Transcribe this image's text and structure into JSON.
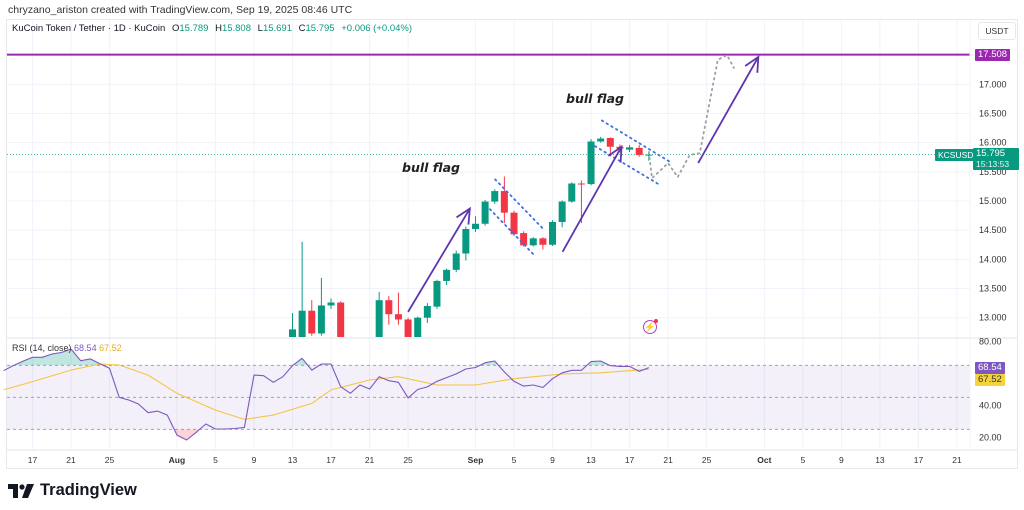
{
  "header": {
    "credit": "chryzano_ariston created with TradingView.com, Sep 19, 2025 08:46 UTC"
  },
  "legend": {
    "symbol": "KuCoin Token / Tether · 1D · KuCoin",
    "open_label": "O",
    "open": "15.789",
    "high_label": "H",
    "high": "15.808",
    "low_label": "L",
    "low": "15.691",
    "close_label": "C",
    "close": "15.795",
    "change": "+0.006 (+0.04%)"
  },
  "price_axis": {
    "currency": "USDT",
    "ticks": [
      "17.000",
      "16.500",
      "16.000",
      "15.500",
      "15.000",
      "14.500",
      "14.000",
      "13.500",
      "13.000"
    ],
    "level_label": "17.508",
    "symbol_badge": "KCSUSDT",
    "last_price": "15.795",
    "countdown": "15:13:53"
  },
  "rsi": {
    "legend": "RSI (14, close)",
    "value": "68.54",
    "ma_value": "67.52",
    "ticks": [
      "80.00",
      "40.00",
      "20.00"
    ],
    "bands": [
      70,
      50,
      30
    ],
    "start_date": "2025-07-14",
    "values": [
      66.6,
      69.8,
      72.5,
      75,
      75,
      77,
      78,
      80.2,
      72.9,
      74,
      71,
      68.1,
      50,
      48.3,
      45.8,
      40.4,
      41.4,
      38.9,
      26.4,
      23.3,
      28.1,
      33.3,
      30.2,
      30.2,
      30.5,
      31.2,
      63.9,
      63.5,
      59.4,
      62.9,
      69.8,
      74.4,
      67,
      70.8,
      70.8,
      56.6,
      52.5,
      57.7,
      55.2,
      62.9,
      60.4,
      59.4,
      49.6,
      54.9,
      56.5,
      60,
      62.3,
      64.6,
      67.7,
      68.6,
      71.6,
      72.7,
      65.8,
      60,
      57,
      57.7,
      56.1,
      61.6,
      65.3,
      66.9,
      66.9,
      72.3,
      72.7,
      69.8,
      69.3,
      69.3,
      66.2,
      68.54
    ],
    "ma": [
      [
        "2025-07-14",
        54.6
      ],
      [
        "2025-07-17",
        59.8
      ],
      [
        "2025-07-21",
        67
      ],
      [
        "2025-07-24",
        70.8
      ],
      [
        "2025-07-26",
        70.2
      ],
      [
        "2025-07-29",
        63.9
      ],
      [
        "2025-08-01",
        52.5
      ],
      [
        "2025-08-05",
        42
      ],
      [
        "2025-08-08",
        36.2
      ],
      [
        "2025-08-11",
        38.9
      ],
      [
        "2025-08-15",
        46.2
      ],
      [
        "2025-08-17",
        54.6
      ],
      [
        "2025-08-21",
        60.8
      ],
      [
        "2025-08-24",
        62.9
      ],
      [
        "2025-08-28",
        57.7
      ],
      [
        "2025-09-01",
        57.7
      ],
      [
        "2025-09-05",
        61.6
      ],
      [
        "2025-09-10",
        64.6
      ],
      [
        "2025-09-14",
        65.3
      ],
      [
        "2025-09-19",
        67.52
      ]
    ]
  },
  "time_axis": {
    "ticks": [
      [
        "2025-07-17",
        "17"
      ],
      [
        "2025-07-21",
        "21"
      ],
      [
        "2025-07-25",
        "25"
      ],
      [
        "2025-08-01",
        "Aug"
      ],
      [
        "2025-08-05",
        "5"
      ],
      [
        "2025-08-09",
        "9"
      ],
      [
        "2025-08-13",
        "13"
      ],
      [
        "2025-08-17",
        "17"
      ],
      [
        "2025-08-21",
        "21"
      ],
      [
        "2025-08-25",
        "25"
      ],
      [
        "2025-09-01",
        "Sep"
      ],
      [
        "2025-09-05",
        "5"
      ],
      [
        "2025-09-09",
        "9"
      ],
      [
        "2025-09-13",
        "13"
      ],
      [
        "2025-09-17",
        "17"
      ],
      [
        "2025-09-21",
        "21"
      ],
      [
        "2025-09-25",
        "25"
      ],
      [
        "2025-10-01",
        "Oct"
      ],
      [
        "2025-10-05",
        "5"
      ],
      [
        "2025-10-09",
        "9"
      ],
      [
        "2025-10-13",
        "13"
      ],
      [
        "2025-10-17",
        "17"
      ],
      [
        "2025-10-21",
        "21"
      ]
    ]
  },
  "candles": [
    {
      "d": "2025-08-13",
      "o": 12.6,
      "h": 13.08,
      "l": 12.45,
      "c": 12.8
    },
    {
      "d": "2025-08-14",
      "o": 12.55,
      "h": 14.3,
      "l": 12.45,
      "c": 13.12
    },
    {
      "d": "2025-08-15",
      "o": 13.12,
      "h": 13.3,
      "l": 12.69,
      "c": 12.73
    },
    {
      "d": "2025-08-16",
      "o": 12.73,
      "h": 13.68,
      "l": 12.69,
      "c": 13.21
    },
    {
      "d": "2025-08-17",
      "o": 13.21,
      "h": 13.33,
      "l": 13.15,
      "c": 13.26
    },
    {
      "d": "2025-08-18",
      "o": 13.26,
      "h": 13.28,
      "l": 12.4,
      "c": 12.5
    },
    {
      "d": "2025-08-22",
      "o": 12.5,
      "h": 13.44,
      "l": 12.45,
      "c": 13.3
    },
    {
      "d": "2025-08-23",
      "o": 13.3,
      "h": 13.37,
      "l": 12.88,
      "c": 13.06
    },
    {
      "d": "2025-08-24",
      "o": 13.06,
      "h": 13.43,
      "l": 12.88,
      "c": 12.97
    },
    {
      "d": "2025-08-25",
      "o": 12.97,
      "h": 13.0,
      "l": 12.5,
      "c": 12.55
    },
    {
      "d": "2025-08-26",
      "o": 12.55,
      "h": 13.02,
      "l": 12.5,
      "c": 13.0
    },
    {
      "d": "2025-08-27",
      "o": 13.0,
      "h": 13.25,
      "l": 12.91,
      "c": 13.2
    },
    {
      "d": "2025-08-28",
      "o": 13.19,
      "h": 13.65,
      "l": 13.15,
      "c": 13.63
    },
    {
      "d": "2025-08-29",
      "o": 13.63,
      "h": 13.84,
      "l": 13.56,
      "c": 13.82
    },
    {
      "d": "2025-08-30",
      "o": 13.82,
      "h": 14.15,
      "l": 13.78,
      "c": 14.1
    },
    {
      "d": "2025-08-31",
      "o": 14.1,
      "h": 14.56,
      "l": 13.98,
      "c": 14.52
    },
    {
      "d": "2025-09-01",
      "o": 14.52,
      "h": 14.74,
      "l": 14.47,
      "c": 14.61
    },
    {
      "d": "2025-09-02",
      "o": 14.61,
      "h": 15.02,
      "l": 14.58,
      "c": 14.99
    },
    {
      "d": "2025-09-03",
      "o": 14.99,
      "h": 15.2,
      "l": 14.95,
      "c": 15.17
    },
    {
      "d": "2025-09-04",
      "o": 15.17,
      "h": 15.42,
      "l": 14.62,
      "c": 14.8
    },
    {
      "d": "2025-09-05",
      "o": 14.8,
      "h": 14.83,
      "l": 14.4,
      "c": 14.43
    },
    {
      "d": "2025-09-06",
      "o": 14.45,
      "h": 14.48,
      "l": 14.22,
      "c": 14.24
    },
    {
      "d": "2025-09-07",
      "o": 14.24,
      "h": 14.38,
      "l": 14.22,
      "c": 14.36
    },
    {
      "d": "2025-09-08",
      "o": 14.36,
      "h": 14.38,
      "l": 14.17,
      "c": 14.25
    },
    {
      "d": "2025-09-09",
      "o": 14.25,
      "h": 14.67,
      "l": 14.23,
      "c": 14.64
    },
    {
      "d": "2025-09-10",
      "o": 14.64,
      "h": 15.01,
      "l": 14.55,
      "c": 14.99
    },
    {
      "d": "2025-09-11",
      "o": 14.99,
      "h": 15.32,
      "l": 14.97,
      "c": 15.3
    },
    {
      "d": "2025-09-12",
      "o": 15.3,
      "h": 15.35,
      "l": 14.62,
      "c": 15.29
    },
    {
      "d": "2025-09-13",
      "o": 15.29,
      "h": 16.06,
      "l": 15.27,
      "c": 16.02
    },
    {
      "d": "2025-09-14",
      "o": 16.02,
      "h": 16.1,
      "l": 16.0,
      "c": 16.07
    },
    {
      "d": "2025-09-15",
      "o": 16.08,
      "h": 16.09,
      "l": 15.79,
      "c": 15.93
    },
    {
      "d": "2025-09-16",
      "o": 15.93,
      "h": 15.97,
      "l": 15.83,
      "c": 15.9
    },
    {
      "d": "2025-09-17",
      "o": 15.88,
      "h": 15.96,
      "l": 15.84,
      "c": 15.92
    },
    {
      "d": "2025-09-18",
      "o": 15.91,
      "h": 15.96,
      "l": 15.76,
      "c": 15.79
    },
    {
      "d": "2025-09-19",
      "o": 15.789,
      "h": 15.808,
      "l": 15.691,
      "c": 15.795
    }
  ],
  "drawings": {
    "horizontal_level": 17.508,
    "arrows": [
      [
        [
          "2025-08-25T00:00",
          13.1
        ],
        [
          "2025-08-31T10:00",
          14.87
        ]
      ],
      [
        [
          "2025-09-10T01:00",
          14.13
        ],
        [
          "2025-09-16T04:00",
          15.93
        ]
      ],
      [
        [
          "2025-09-24T03:00",
          15.65
        ],
        [
          "2025-09-30T09:00",
          17.47
        ]
      ]
    ],
    "flag_lines": [
      [
        [
          "2025-09-03T01:00",
          15.37
        ],
        [
          "2025-09-08T01:00",
          14.52
        ]
      ],
      [
        [
          "2025-09-02T12:00",
          14.86
        ],
        [
          "2025-09-07T00:00",
          14.09
        ]
      ],
      [
        [
          "2025-09-14T03:00",
          16.38
        ],
        [
          "2025-09-21T05:00",
          15.67
        ]
      ],
      [
        [
          "2025-09-13T10:00",
          15.94
        ],
        [
          "2025-09-20T00:00",
          15.29
        ]
      ]
    ],
    "projection": [
      [
        "2025-09-19T00:00",
        15.84
      ],
      [
        "2025-09-19T08:00",
        15.39
      ],
      [
        "2025-09-21T00:00",
        15.65
      ],
      [
        "2025-09-22T00:00",
        15.41
      ],
      [
        "2025-09-23T06:00",
        15.79
      ],
      [
        "2025-09-24T07:00",
        15.82
      ],
      [
        "2025-09-26T04:00",
        17.42
      ],
      [
        "2025-09-27T03:00",
        17.5
      ],
      [
        "2025-09-27T20:00",
        17.28
      ]
    ],
    "labels": [
      "bull flag",
      "bull flag"
    ]
  },
  "colors": {
    "up": "#089981",
    "down": "#F23645",
    "level": "#9C27B0",
    "arrow": "#5E35B1",
    "flag": "#3D6FE0",
    "projection": "#A0A0A0",
    "rsi": "#7E57C2",
    "rsi_ma": "#F5C542"
  },
  "brand": {
    "name": "TradingView"
  }
}
